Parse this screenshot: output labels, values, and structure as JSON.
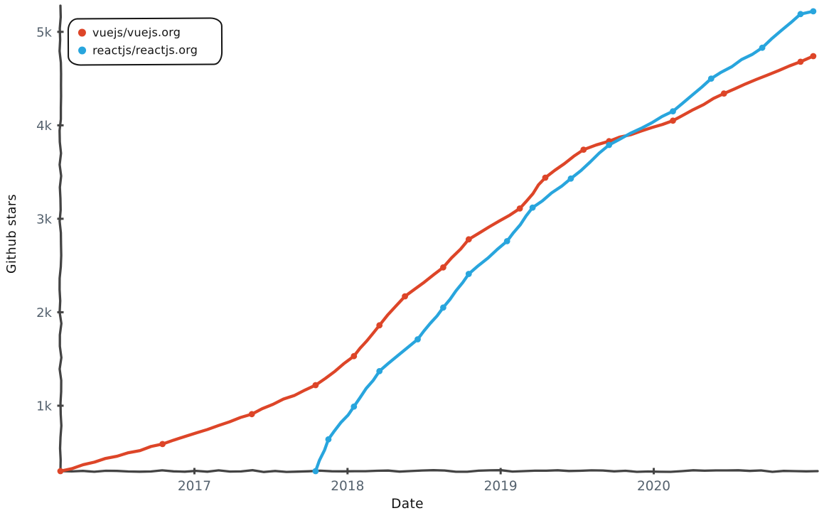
{
  "chart_data": {
    "type": "line",
    "title": "",
    "xlabel": "Date",
    "ylabel": "Github stars",
    "x_tick_labels": [
      "2017",
      "2018",
      "2019",
      "2020"
    ],
    "x_tick_values": [
      2017,
      2018,
      2019,
      2020
    ],
    "y_tick_labels": [
      "1k",
      "2k",
      "3k",
      "4k",
      "5k"
    ],
    "y_tick_values": [
      1000,
      2000,
      3000,
      4000,
      5000
    ],
    "x_range_years": [
      2016.125,
      2021.07
    ],
    "y_range": [
      300,
      5280
    ],
    "grid": false,
    "legend_position": "top-left",
    "series": [
      {
        "name": "vuejs/vuejs.org",
        "color": "#dd4528",
        "points": [
          [
            "2016-02",
            300
          ],
          [
            "2016-10",
            590
          ],
          [
            "2017-05",
            910
          ],
          [
            "2017-10",
            1220
          ],
          [
            "2018-01",
            1530
          ],
          [
            "2018-03",
            1860
          ],
          [
            "2018-05",
            2170
          ],
          [
            "2018-08",
            2480
          ],
          [
            "2018-10",
            2780
          ],
          [
            "2019-02",
            3110
          ],
          [
            "2019-04",
            3440
          ],
          [
            "2019-07",
            3740
          ],
          [
            "2019-09",
            3830
          ],
          [
            "2020-02",
            4050
          ],
          [
            "2020-06",
            4340
          ],
          [
            "2020-12",
            4680
          ],
          [
            "2021-01",
            4740
          ]
        ]
      },
      {
        "name": "reactjs/reactjs.org",
        "color": "#28a5dd",
        "points": [
          [
            "2017-10",
            300
          ],
          [
            "2017-11",
            640
          ],
          [
            "2018-01",
            990
          ],
          [
            "2018-03",
            1370
          ],
          [
            "2018-06",
            1710
          ],
          [
            "2018-08",
            2050
          ],
          [
            "2018-10",
            2410
          ],
          [
            "2019-01",
            2760
          ],
          [
            "2019-03",
            3120
          ],
          [
            "2019-06",
            3430
          ],
          [
            "2019-09",
            3790
          ],
          [
            "2020-02",
            4150
          ],
          [
            "2020-05",
            4500
          ],
          [
            "2020-09",
            4830
          ],
          [
            "2020-12",
            5190
          ],
          [
            "2021-01",
            5220
          ]
        ]
      }
    ]
  },
  "colors": {
    "background": "#ffffff",
    "axis": "#434343",
    "tick_label": "#55626e",
    "axis_title": "#111111",
    "legend_text": "#111111",
    "legend_border": "#141414"
  }
}
